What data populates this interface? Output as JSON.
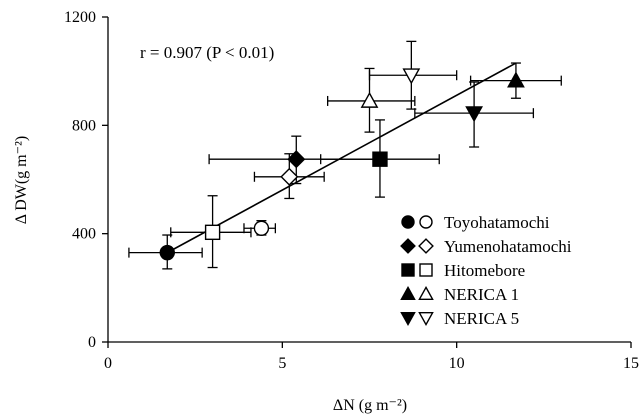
{
  "chart_data": {
    "type": "scatter",
    "annotation": "r = 0.907 (P < 0.01)",
    "xlabel": "ΔN  (g m⁻²)",
    "ylabel": "Δ DW(g m⁻²)",
    "xlim": [
      0,
      15
    ],
    "ylim": [
      0,
      1200
    ],
    "x_ticks": [
      "0",
      "5",
      "10",
      "15"
    ],
    "y_ticks": [
      "0",
      "400",
      "800",
      "1200"
    ],
    "grid": false,
    "legend_position": "bottom-right",
    "regression_line": {
      "x": [
        1.7,
        11.7
      ],
      "y": [
        330,
        1030
      ]
    },
    "legend": [
      {
        "name": "Toyohatamochi",
        "marker": "circle"
      },
      {
        "name": "Yumenohatamochi",
        "marker": "diamond"
      },
      {
        "name": "Hitomebore",
        "marker": "square"
      },
      {
        "name": "NERICA 1",
        "marker": "triangle-up"
      },
      {
        "name": "NERICA 5",
        "marker": "triangle-down"
      }
    ],
    "series": [
      {
        "name": "Toyohatamochi",
        "marker": "circle",
        "filled": true,
        "x": 1.7,
        "y": 330,
        "x_err": [
          0.6,
          2.7
        ],
        "y_err": [
          270,
          395
        ]
      },
      {
        "name": "Toyohatamochi",
        "marker": "circle",
        "filled": false,
        "x": 4.4,
        "y": 420,
        "x_err": [
          3.9,
          4.8
        ],
        "y_err": [
          395,
          448
        ]
      },
      {
        "name": "Yumenohatamochi",
        "marker": "diamond",
        "filled": true,
        "x": 5.4,
        "y": 675,
        "x_err": [
          2.9,
          7.8
        ],
        "y_err": [
          585,
          760
        ]
      },
      {
        "name": "Yumenohatamochi",
        "marker": "diamond",
        "filled": false,
        "x": 5.2,
        "y": 610,
        "x_err": [
          4.2,
          6.2
        ],
        "y_err": [
          530,
          695
        ]
      },
      {
        "name": "Hitomebore",
        "marker": "square",
        "filled": true,
        "x": 7.8,
        "y": 675,
        "x_err": [
          6.1,
          9.5
        ],
        "y_err": [
          535,
          820
        ]
      },
      {
        "name": "Hitomebore",
        "marker": "square",
        "filled": false,
        "x": 3.0,
        "y": 405,
        "x_err": [
          1.8,
          4.1
        ],
        "y_err": [
          275,
          540
        ]
      },
      {
        "name": "NERICA 1",
        "marker": "triangle-up",
        "filled": true,
        "x": 11.7,
        "y": 965,
        "x_err": [
          10.4,
          13.0
        ],
        "y_err": [
          900,
          1030
        ]
      },
      {
        "name": "NERICA 1",
        "marker": "triangle-up",
        "filled": false,
        "x": 7.5,
        "y": 890,
        "x_err": [
          6.3,
          8.8
        ],
        "y_err": [
          775,
          1010
        ]
      },
      {
        "name": "NERICA 5",
        "marker": "triangle-down",
        "filled": true,
        "x": 10.5,
        "y": 845,
        "x_err": [
          8.8,
          12.2
        ],
        "y_err": [
          720,
          960
        ]
      },
      {
        "name": "NERICA 5",
        "marker": "triangle-down",
        "filled": false,
        "x": 8.7,
        "y": 985,
        "x_err": [
          7.5,
          10.0
        ],
        "y_err": [
          860,
          1110
        ]
      }
    ]
  }
}
